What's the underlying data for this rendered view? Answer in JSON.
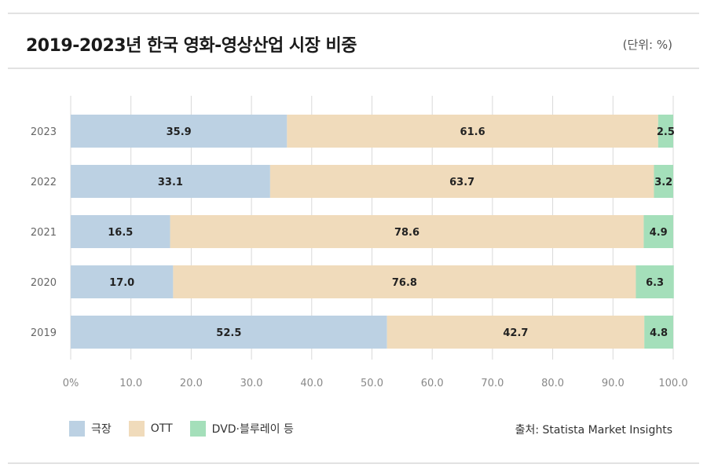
{
  "title": "2019-2023년 한국 영화-영상산업 시장 비중",
  "unit_label": "(단위: %)",
  "source": "출처: Statista Market Insights",
  "colors": {
    "theater": "#bcd1e3",
    "ott": "#f0dbbb",
    "dvd": "#a4dfba",
    "grid": "#d9d9d9",
    "axis_text": "#888888",
    "label_text": "#222222"
  },
  "chart_data": {
    "type": "bar",
    "orientation": "horizontal",
    "stacked": true,
    "categories": [
      "2023",
      "2022",
      "2021",
      "2020",
      "2019"
    ],
    "series": [
      {
        "name": "극장",
        "values": [
          35.9,
          33.1,
          16.5,
          17.0,
          52.5
        ]
      },
      {
        "name": "OTT",
        "values": [
          61.6,
          63.7,
          78.6,
          76.8,
          42.7
        ]
      },
      {
        "name": "DVD·블루레이 등",
        "values": [
          2.5,
          3.2,
          4.9,
          6.3,
          4.8
        ]
      }
    ],
    "xlim": [
      0,
      100
    ],
    "xticks": [
      0,
      10,
      20,
      30,
      40,
      50,
      60,
      70,
      80,
      90,
      100
    ],
    "xtick_labels": [
      "0%",
      "10.0",
      "20.0",
      "30.0",
      "40.0",
      "50.0",
      "60.0",
      "70.0",
      "80.0",
      "90.0",
      "100.0"
    ],
    "grid": true,
    "legend_position": "bottom-left"
  }
}
